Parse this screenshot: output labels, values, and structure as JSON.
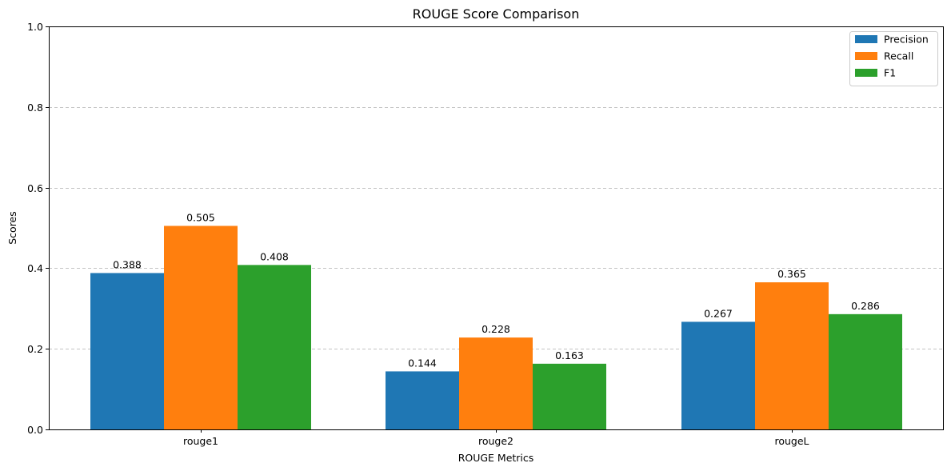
{
  "chart_data": {
    "type": "bar",
    "title": "ROUGE Score Comparison",
    "xlabel": "ROUGE Metrics",
    "ylabel": "Scores",
    "categories": [
      "rouge1",
      "rouge2",
      "rougeL"
    ],
    "ylim": [
      0,
      1.0
    ],
    "yticks": [
      "0.0",
      "0.2",
      "0.4",
      "0.6",
      "0.8",
      "1.0"
    ],
    "grid": "y-dashed",
    "legend_position": "top-right",
    "series": [
      {
        "name": "Precision",
        "color": "#1f77b4",
        "values": [
          0.388,
          0.144,
          0.267
        ],
        "labels": [
          "0.388",
          "0.144",
          "0.267"
        ]
      },
      {
        "name": "Recall",
        "color": "#ff7f0e",
        "values": [
          0.505,
          0.228,
          0.365
        ],
        "labels": [
          "0.505",
          "0.228",
          "0.365"
        ]
      },
      {
        "name": "F1",
        "color": "#2ca02c",
        "values": [
          0.408,
          0.163,
          0.286
        ],
        "labels": [
          "0.408",
          "0.163",
          "0.286"
        ]
      }
    ]
  }
}
